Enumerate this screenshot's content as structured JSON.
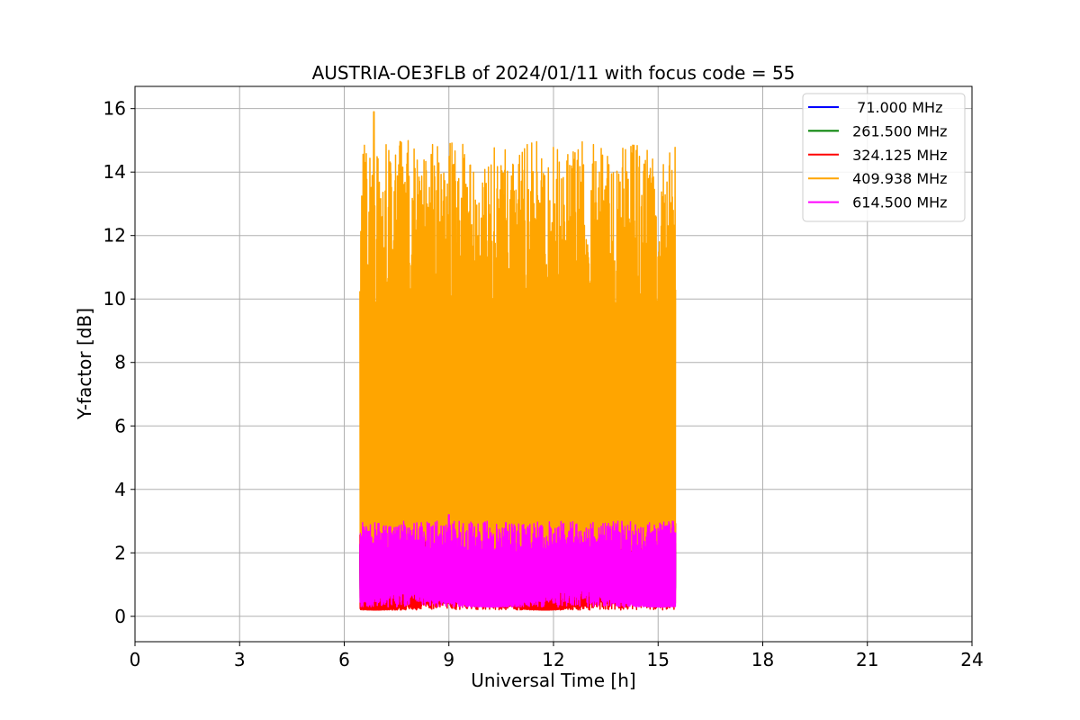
{
  "chart_data": {
    "type": "line",
    "title": "AUSTRIA-OE3FLB of 2024/01/11 with focus code = 55",
    "xlabel": "Universal Time [h]",
    "ylabel": "Y-factor [dB]",
    "xlim": [
      0,
      24
    ],
    "ylim": [
      -0.8,
      16.7
    ],
    "xticks": [
      0,
      3,
      6,
      9,
      12,
      15,
      18,
      21,
      24
    ],
    "yticks": [
      0,
      2,
      4,
      6,
      8,
      10,
      12,
      14,
      16
    ],
    "grid": true,
    "legend_position": "top-right",
    "series": [
      {
        "name": "  71.000 MHz",
        "color": "#0000ff",
        "t_start": 6.45,
        "t_end": 15.5,
        "band_low": 0.5,
        "band_high": 2.6,
        "peak": 6.6,
        "peak_t": 9.05
      },
      {
        "name": " 261.500 MHz",
        "color": "#008000",
        "t_start": 6.45,
        "t_end": 15.5,
        "band_low": 0.4,
        "band_high": 2.6,
        "peak": 4.2,
        "peak_t": 9.05
      },
      {
        "name": " 324.125 MHz",
        "color": "#ff0000",
        "t_start": 6.45,
        "t_end": 15.5,
        "band_low": 0.2,
        "band_high": 3.8,
        "peak": 6.8,
        "peak_t": 6.95
      },
      {
        "name": " 409.938 MHz",
        "color": "#ffa500",
        "t_start": 6.45,
        "t_end": 15.5,
        "band_low": 2.0,
        "band_high": 15.0,
        "peak": 15.9,
        "peak_t": 6.85
      },
      {
        "name": " 614.500 MHz",
        "color": "#ff00ff",
        "t_start": 6.45,
        "t_end": 15.5,
        "band_low": 0.3,
        "band_high": 3.0,
        "peak": 3.2,
        "peak_t": 9.0
      }
    ]
  }
}
